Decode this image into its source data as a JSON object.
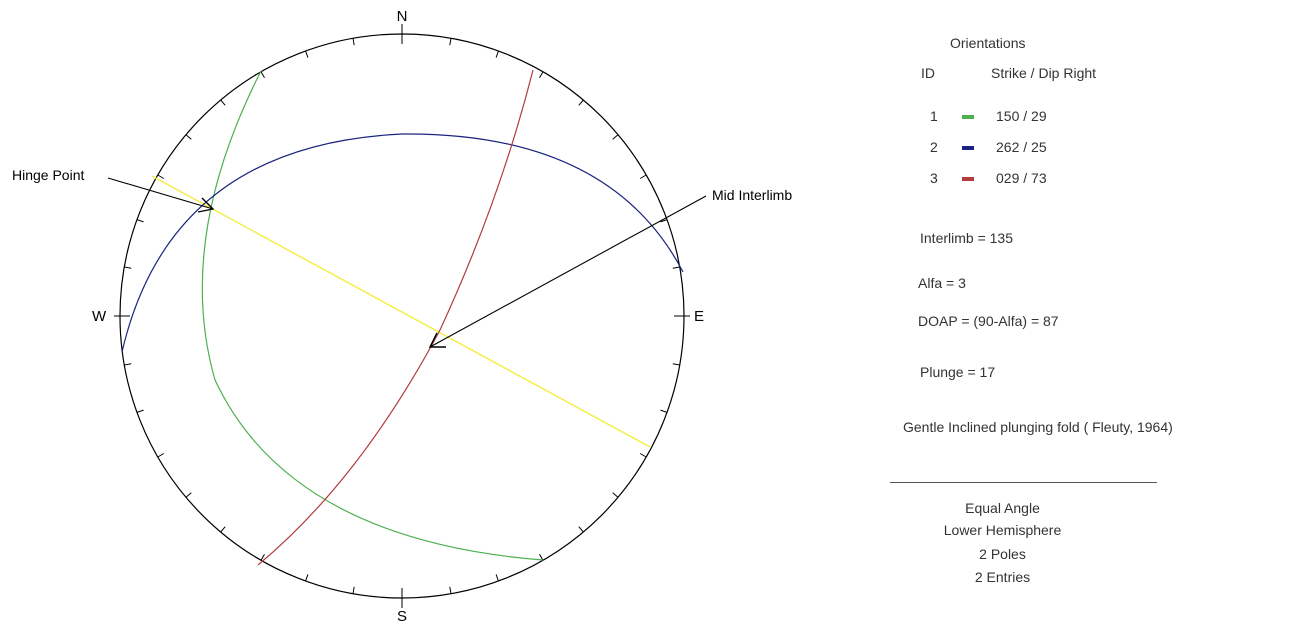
{
  "stereonet": {
    "labels": {
      "north": "N",
      "south": "S",
      "east": "E",
      "west": "W"
    },
    "annotations": {
      "hinge_point": "Hinge Point",
      "mid_interlimb": "Mid Interlimb"
    },
    "colors": {
      "plane_1": "#4caf50",
      "plane_2": "#1a237e",
      "plane_3": "#b23b3b",
      "axial_line": "#f2ee4a",
      "primitive": "#000000",
      "arrow": "#000000"
    }
  },
  "legend": {
    "title": "Orientations",
    "id_header": "ID",
    "value_header": "Strike / Dip Right",
    "rows": [
      {
        "id": "1",
        "value": "150  /  29",
        "color": "#4caf50"
      },
      {
        "id": "2",
        "value": "262  /  25",
        "color": "#1a237e"
      },
      {
        "id": "3",
        "value": "029  /  73",
        "color": "#b23b3b"
      }
    ]
  },
  "results": {
    "interlimb": "Interlimb = 135",
    "alfa": "Alfa = 3",
    "doap": "DOAP = (90-Alfa) = 87",
    "plunge": "Plunge = 17",
    "classification": "Gentle Inclined plunging fold ( Fleuty, 1964)"
  },
  "footer": {
    "projection": "Equal Angle",
    "hemisphere": "Lower Hemisphere",
    "poles": "2 Poles",
    "entries": "2 Entries"
  }
}
